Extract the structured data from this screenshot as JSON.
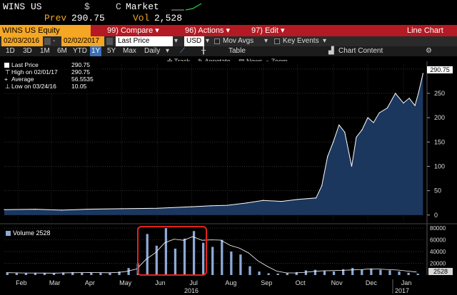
{
  "header": {
    "ticker": "WINS US",
    "currency": "$",
    "market_label": "Market",
    "prev_label": "Prev",
    "prev_value": "290.75",
    "vol_label": "Vol",
    "vol_value": "2,528"
  },
  "function_bar": {
    "security": "WINS US Equity",
    "compare": {
      "num": "99)",
      "label": "Compare"
    },
    "actions": {
      "num": "96)",
      "label": "Actions"
    },
    "edit": {
      "num": "97)",
      "label": "Edit"
    },
    "view_label": "Line Chart"
  },
  "toolbar1": {
    "start_date": "02/03/2016",
    "end_date": "02/02/2017",
    "price_field": "Last Price",
    "currency": "USD",
    "mov_avgs": "Mov Avgs",
    "key_events": "Key Events"
  },
  "toolbar2": {
    "ranges": [
      "1D",
      "3D",
      "1M",
      "6M",
      "YTD",
      "1Y",
      "5Y",
      "Max"
    ],
    "active_range": "1Y",
    "frequency": "Daily",
    "table_label": "Table",
    "chart_content_label": "Chart Content"
  },
  "chart_tools": {
    "track": "Track",
    "annotate": "Annotate",
    "news": "News",
    "zoom": "Zoom"
  },
  "legend": {
    "last_price_label": "Last Price",
    "last_price_value": "290.75",
    "high_label": "High on 02/01/17",
    "high_value": "290.75",
    "average_label": "Average",
    "average_value": "56.5535",
    "low_label": "Low on 03/24/16",
    "low_value": "10.05"
  },
  "price_tag": "290.75",
  "volume_legend": "Volume 2528",
  "volume_tag": "2528",
  "colors": {
    "accent_orange": "#f5a623",
    "function_bar_red": "#b31a23",
    "area_fill": "#1c3a63",
    "line": "#ffffff",
    "highlight_box": "#e2231a",
    "volume_bar": "#8ea9d6"
  },
  "chart_data": [
    {
      "type": "area",
      "series": [
        {
          "name": "Last Price",
          "x": [
            "2016-02-03",
            "2016-03-01",
            "2016-03-24",
            "2016-04-15",
            "2016-05-15",
            "2016-06-15",
            "2016-07-15",
            "2016-08-01",
            "2016-08-15",
            "2016-09-01",
            "2016-09-15",
            "2016-10-01",
            "2016-10-15",
            "2016-10-31",
            "2016-11-05",
            "2016-11-10",
            "2016-11-15",
            "2016-11-20",
            "2016-11-25",
            "2016-12-01",
            "2016-12-05",
            "2016-12-10",
            "2016-12-15",
            "2016-12-20",
            "2016-12-25",
            "2017-01-01",
            "2017-01-08",
            "2017-01-15",
            "2017-01-20",
            "2017-01-25",
            "2017-01-28",
            "2017-02-01"
          ],
          "values": [
            11,
            12,
            10.05,
            12,
            13,
            14,
            17,
            19,
            20,
            25,
            30,
            28,
            32,
            35,
            60,
            120,
            150,
            185,
            170,
            100,
            160,
            175,
            200,
            190,
            210,
            220,
            250,
            230,
            240,
            225,
            250,
            290.75
          ]
        }
      ],
      "y_ticks": [
        0,
        50,
        100,
        150,
        200,
        250,
        300
      ],
      "ylim": [
        -15,
        310
      ],
      "x_ticks": [
        "Feb",
        "Mar",
        "Apr",
        "May",
        "Jun",
        "Jul",
        "Aug",
        "Sep",
        "Oct",
        "Nov",
        "Dec",
        "Jan"
      ],
      "year_labels": [
        "2016",
        "2017"
      ],
      "grid": true
    },
    {
      "type": "bar",
      "series": [
        {
          "name": "Volume",
          "values": [
            4000,
            3500,
            3000,
            3800,
            3200,
            3000,
            4500,
            5000,
            4200,
            3800,
            3600,
            4000,
            6000,
            12000,
            20000,
            70000,
            50000,
            80000,
            45000,
            62000,
            75000,
            55000,
            48000,
            60000,
            40000,
            35000,
            15000,
            6000,
            3000,
            2500,
            3500,
            5000,
            8000,
            9000,
            7000,
            6000,
            10000,
            12000,
            9000,
            11000,
            9000,
            8000,
            6000,
            4000,
            2528
          ]
        }
      ],
      "y_ticks": [
        20000,
        40000,
        60000,
        80000
      ],
      "ylim": [
        0,
        85000
      ]
    }
  ]
}
